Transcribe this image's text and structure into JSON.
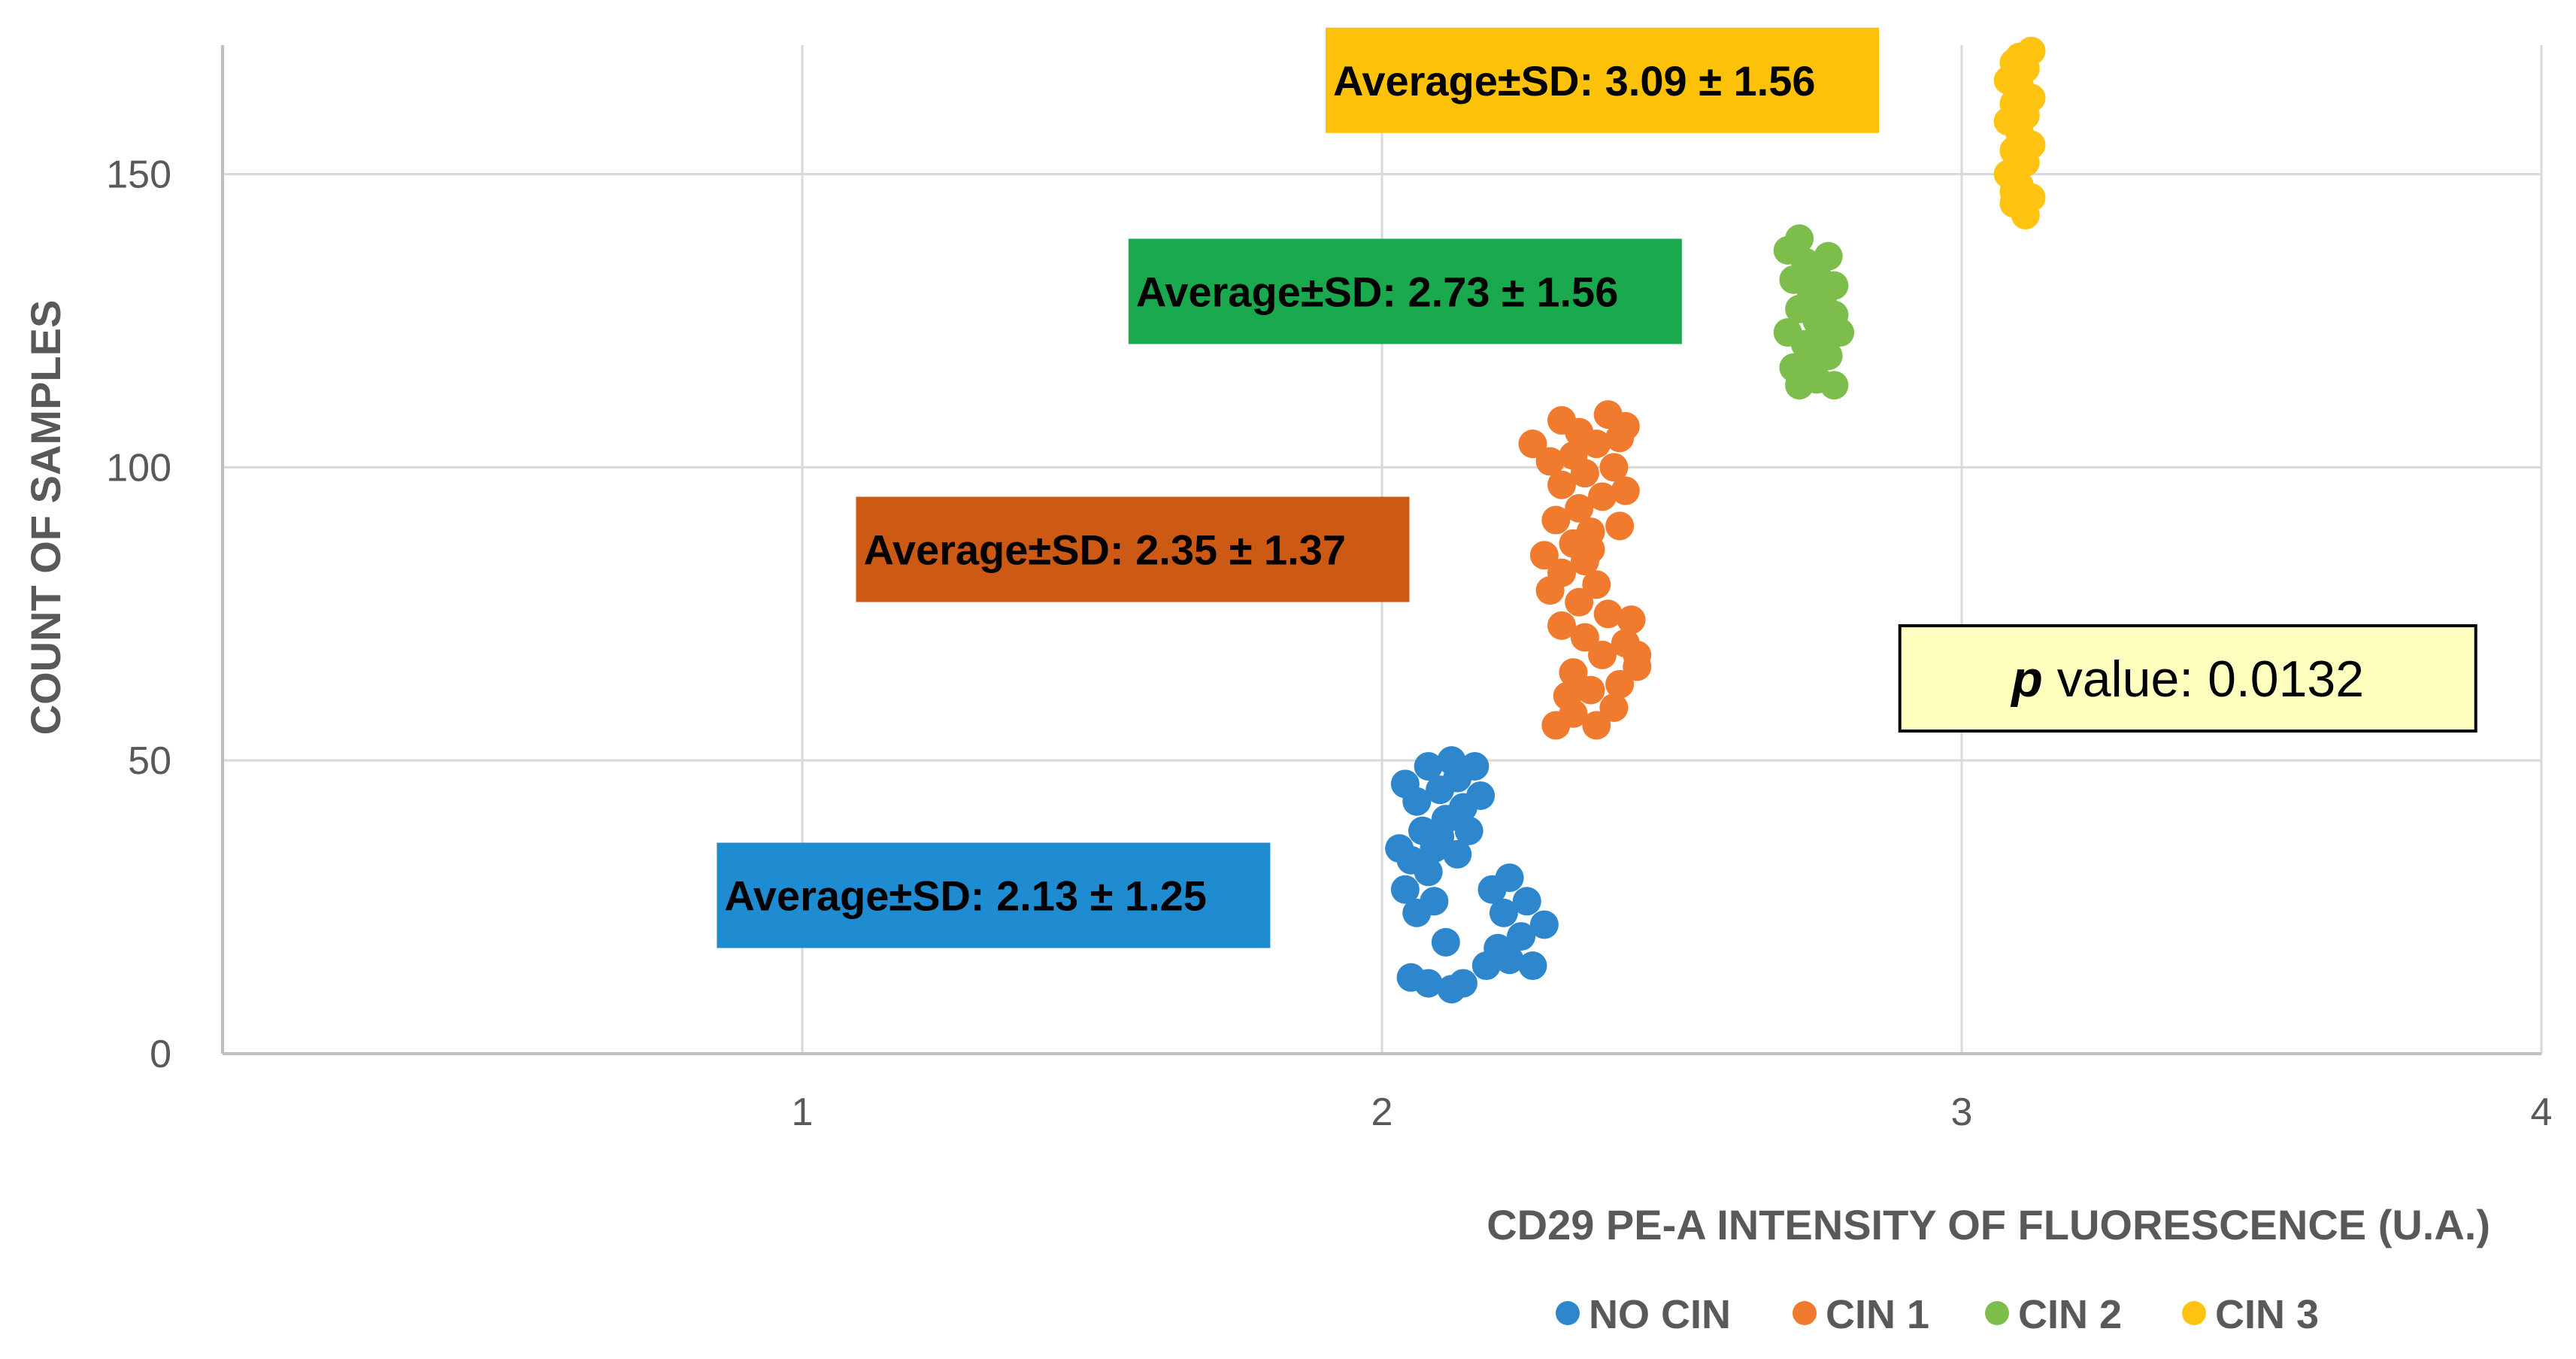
{
  "chart_data": {
    "type": "scatter",
    "title": "",
    "xlabel": "CD29 PE-A INTENSITY OF FLUORESCENCE (U.A.)",
    "ylabel": "COUNT OF  SAMPLES",
    "xlim": [
      0,
      4
    ],
    "ylim": [
      0,
      172
    ],
    "xticks": [
      1,
      2,
      3,
      4
    ],
    "yticks": [
      0,
      50,
      100,
      150
    ],
    "grid": true,
    "legend_position": "bottom",
    "series": [
      {
        "name": "NO CIN",
        "color": "#2E86CC",
        "points": [
          [
            2.05,
            13
          ],
          [
            2.08,
            12
          ],
          [
            2.12,
            11
          ],
          [
            2.14,
            12
          ],
          [
            2.18,
            15
          ],
          [
            2.22,
            16
          ],
          [
            2.26,
            15
          ],
          [
            2.2,
            18
          ],
          [
            2.24,
            20
          ],
          [
            2.28,
            22
          ],
          [
            2.21,
            24
          ],
          [
            2.25,
            26
          ],
          [
            2.19,
            28
          ],
          [
            2.22,
            30
          ],
          [
            2.11,
            19
          ],
          [
            2.06,
            24
          ],
          [
            2.09,
            26
          ],
          [
            2.04,
            28
          ],
          [
            2.08,
            31
          ],
          [
            2.05,
            33
          ],
          [
            2.09,
            35
          ],
          [
            2.13,
            34
          ],
          [
            2.07,
            38
          ],
          [
            2.11,
            40
          ],
          [
            2.14,
            42
          ],
          [
            2.06,
            43
          ],
          [
            2.1,
            45
          ],
          [
            2.04,
            46
          ],
          [
            2.13,
            47
          ],
          [
            2.16,
            49
          ],
          [
            2.08,
            49
          ],
          [
            2.12,
            50
          ],
          [
            2.1,
            37
          ],
          [
            2.15,
            38
          ],
          [
            2.03,
            35
          ],
          [
            2.17,
            44
          ]
        ]
      },
      {
        "name": "CIN 1",
        "color": "#F07B2E",
        "points": [
          [
            2.3,
            56
          ],
          [
            2.33,
            58
          ],
          [
            2.37,
            56
          ],
          [
            2.4,
            59
          ],
          [
            2.32,
            61
          ],
          [
            2.36,
            62
          ],
          [
            2.41,
            63
          ],
          [
            2.44,
            66
          ],
          [
            2.33,
            65
          ],
          [
            2.38,
            68
          ],
          [
            2.42,
            70
          ],
          [
            2.35,
            71
          ],
          [
            2.31,
            73
          ],
          [
            2.39,
            75
          ],
          [
            2.43,
            74
          ],
          [
            2.34,
            77
          ],
          [
            2.29,
            79
          ],
          [
            2.37,
            80
          ],
          [
            2.31,
            82
          ],
          [
            2.35,
            84
          ],
          [
            2.28,
            85
          ],
          [
            2.33,
            87
          ],
          [
            2.36,
            89
          ],
          [
            2.41,
            90
          ],
          [
            2.3,
            91
          ],
          [
            2.34,
            93
          ],
          [
            2.38,
            95
          ],
          [
            2.42,
            96
          ],
          [
            2.31,
            97
          ],
          [
            2.35,
            99
          ],
          [
            2.4,
            100
          ],
          [
            2.29,
            101
          ],
          [
            2.33,
            102
          ],
          [
            2.37,
            104
          ],
          [
            2.41,
            105
          ],
          [
            2.26,
            104
          ],
          [
            2.34,
            106
          ],
          [
            2.31,
            108
          ],
          [
            2.42,
            107
          ],
          [
            2.39,
            109
          ],
          [
            2.36,
            86
          ],
          [
            2.44,
            68
          ]
        ]
      },
      {
        "name": "CIN 2",
        "color": "#7DBD4C",
        "points": [
          [
            2.72,
            114
          ],
          [
            2.75,
            115
          ],
          [
            2.78,
            114
          ],
          [
            2.71,
            117
          ],
          [
            2.74,
            118
          ],
          [
            2.77,
            119
          ],
          [
            2.73,
            121
          ],
          [
            2.76,
            122
          ],
          [
            2.7,
            123
          ],
          [
            2.75,
            125
          ],
          [
            2.78,
            126
          ],
          [
            2.72,
            127
          ],
          [
            2.76,
            128
          ],
          [
            2.74,
            130
          ],
          [
            2.78,
            131
          ],
          [
            2.71,
            132
          ],
          [
            2.75,
            133
          ],
          [
            2.73,
            135
          ],
          [
            2.77,
            136
          ],
          [
            2.7,
            137
          ],
          [
            2.72,
            139
          ],
          [
            2.79,
            123
          ]
        ]
      },
      {
        "name": "CIN 3",
        "color": "#FEC411",
        "points": [
          [
            3.11,
            143
          ],
          [
            3.09,
            145
          ],
          [
            3.12,
            146
          ],
          [
            3.1,
            148
          ],
          [
            3.08,
            150
          ],
          [
            3.11,
            152
          ],
          [
            3.09,
            154
          ],
          [
            3.12,
            155
          ],
          [
            3.1,
            157
          ],
          [
            3.08,
            159
          ],
          [
            3.11,
            160
          ],
          [
            3.09,
            162
          ],
          [
            3.12,
            163
          ],
          [
            3.1,
            165
          ],
          [
            3.08,
            166
          ],
          [
            3.11,
            168
          ],
          [
            3.09,
            169
          ],
          [
            3.12,
            171
          ],
          [
            3.1,
            170
          ],
          [
            3.09,
            147
          ]
        ]
      }
    ],
    "annotations": [
      {
        "series": "NO CIN",
        "label": "Average±SD: 2.13 ± 1.25",
        "color": "#1F8BD1",
        "at": [
          1.33,
          27
        ]
      },
      {
        "series": "CIN 1",
        "label": "Average±SD: 2.35 ± 1.37",
        "color": "#CC5A14",
        "at": [
          1.57,
          86
        ]
      },
      {
        "series": "CIN 2",
        "label": "Average±SD: 2.73 ± 1.56",
        "color": "#1BA94F",
        "at": [
          2.04,
          130
        ]
      },
      {
        "series": "CIN 3",
        "label": "Average±SD: 3.09 ± 1.56",
        "color": "#FCC20A",
        "at": [
          2.38,
          166
        ]
      }
    ],
    "p_value": {
      "label": "p",
      "text": " value: 0.0132",
      "fill": "#FFFFC0",
      "border": "#000000",
      "at": [
        3.39,
        64
      ]
    }
  }
}
